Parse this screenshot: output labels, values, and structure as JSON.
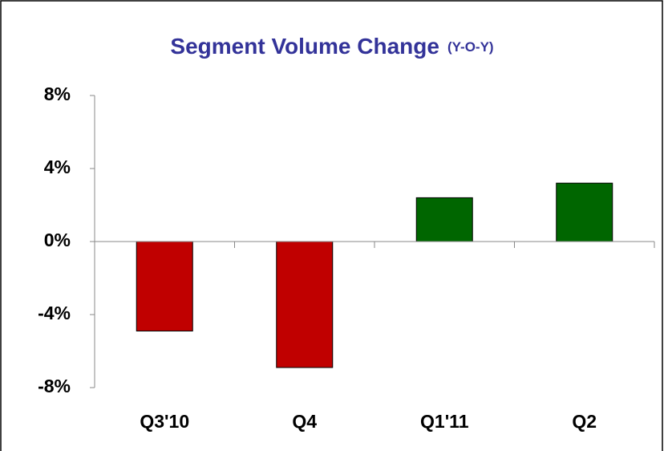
{
  "chart_data": {
    "type": "bar",
    "title": "Segment Volume Change",
    "subtitle": "(Y-O-Y)",
    "categories": [
      "Q3'10",
      "Q4",
      "Q1'11",
      "Q2"
    ],
    "values": [
      -4.9,
      -6.9,
      2.4,
      3.2
    ],
    "colors": [
      "#c00000",
      "#c00000",
      "#006600",
      "#006600"
    ],
    "ylim": [
      -8,
      8
    ],
    "yticks": [
      {
        "value": 8,
        "label": "8%"
      },
      {
        "value": 4,
        "label": "4%"
      },
      {
        "value": 0,
        "label": "0%"
      },
      {
        "value": -4,
        "label": "-4%"
      },
      {
        "value": -8,
        "label": "-8%"
      }
    ],
    "grid": false
  }
}
